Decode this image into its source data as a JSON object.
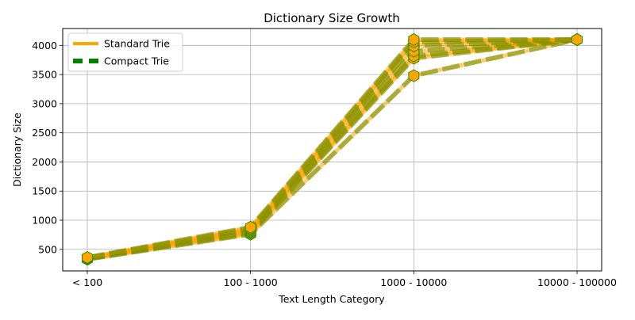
{
  "chart_data": {
    "type": "line",
    "title": "Dictionary Size Growth",
    "xlabel": "Text Length Category",
    "ylabel": "Dictionary Size",
    "categories": [
      "< 100",
      "100 - 1000",
      "1000 - 10000",
      "10000 - 100000"
    ],
    "ylim": [
      130,
      4290
    ],
    "yticks": [
      500,
      1000,
      1500,
      2000,
      2500,
      3000,
      3500,
      4000
    ],
    "grid": true,
    "legend_position": "top-left",
    "series": [
      {
        "name": "Standard Trie",
        "style": "solid",
        "color": "#ffa500",
        "values": [
          null,
          null,
          null,
          null
        ]
      },
      {
        "name": "Compact Trie",
        "style": "dashed",
        "color": "#008000",
        "values": [
          null,
          null,
          null,
          null
        ]
      }
    ],
    "runs": [
      [
        330,
        760,
        3480,
        4100
      ],
      [
        335,
        780,
        3780,
        4100
      ],
      [
        340,
        800,
        3820,
        4100
      ],
      [
        345,
        820,
        3900,
        4100
      ],
      [
        350,
        840,
        3990,
        4100
      ],
      [
        355,
        860,
        4060,
        4100
      ],
      [
        360,
        880,
        4100,
        4100
      ]
    ],
    "marker_color": "#ffa500",
    "marker_edge_color": "#2e8b00"
  }
}
